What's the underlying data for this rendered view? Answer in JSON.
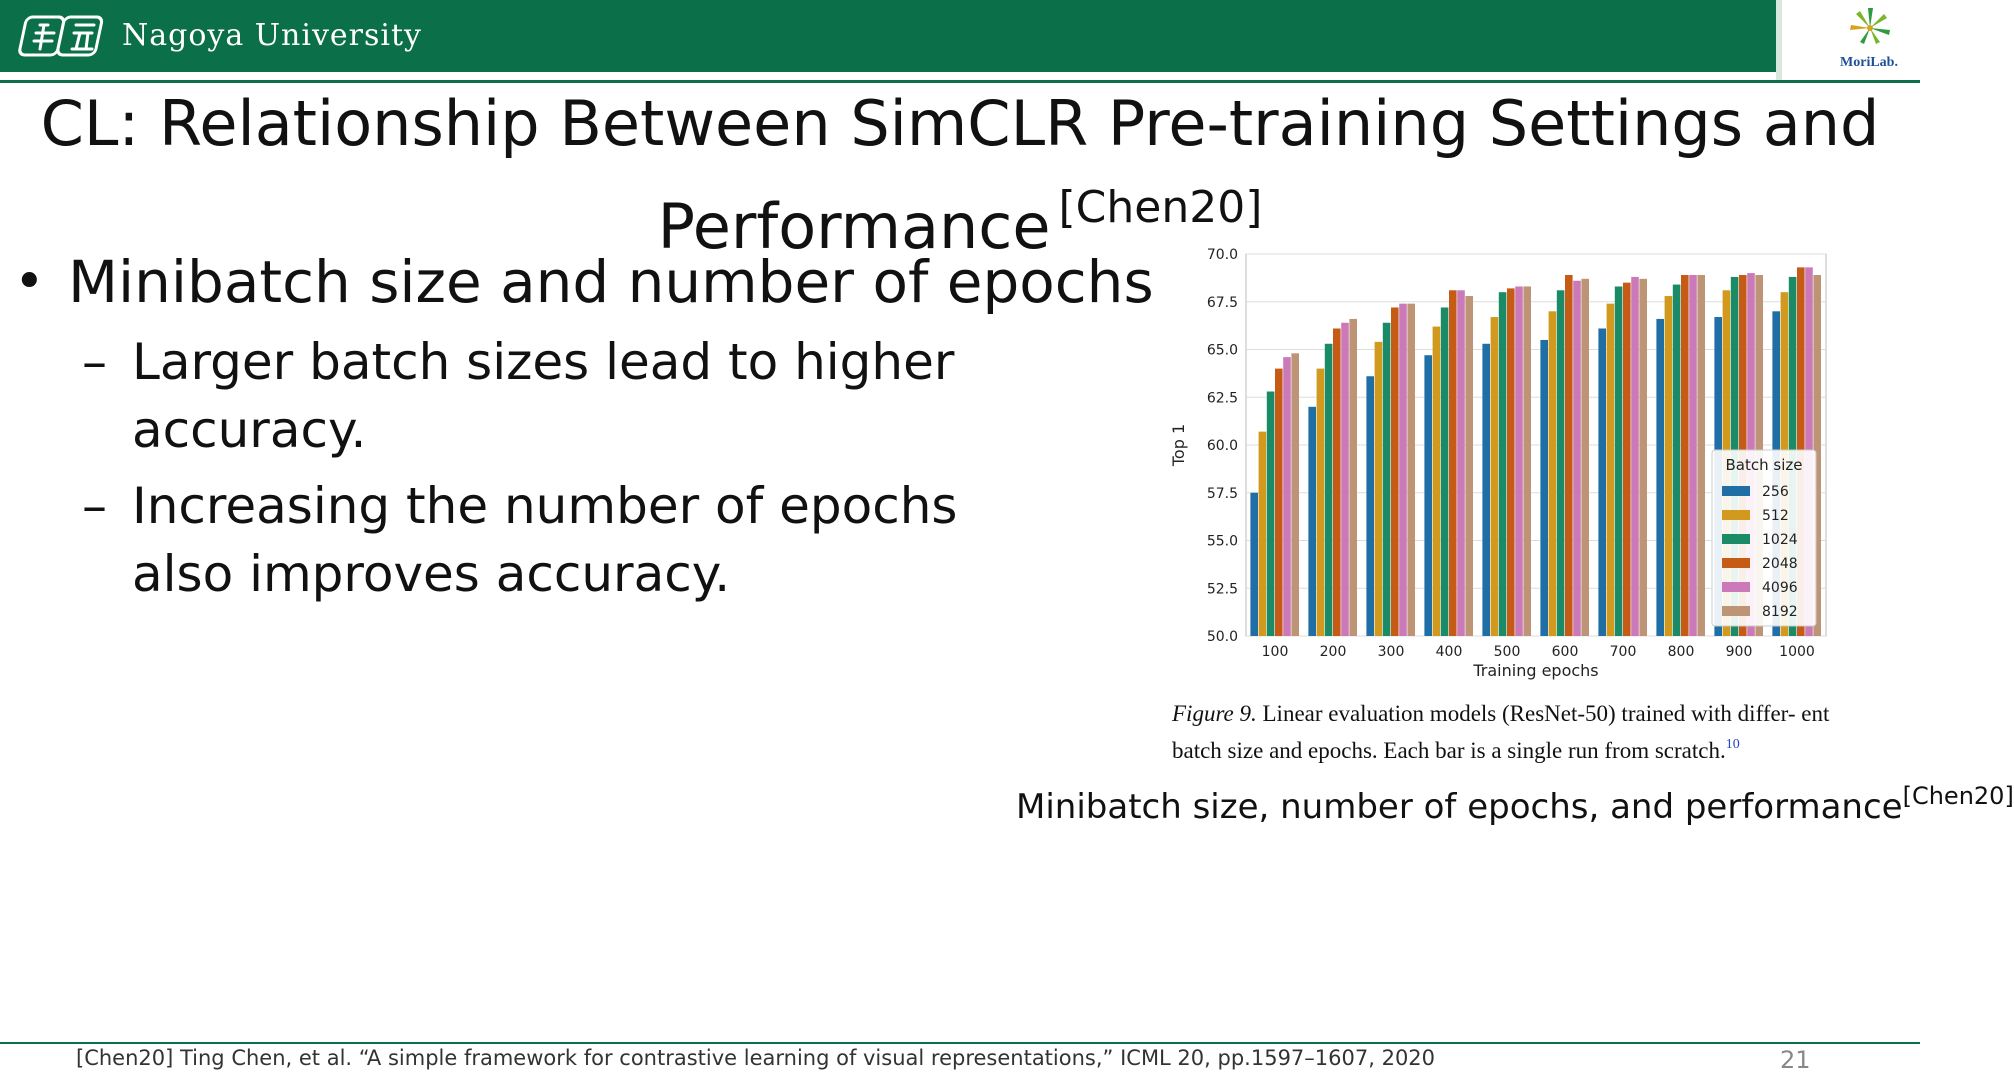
{
  "header": {
    "university": "Nagoya University",
    "lab_logo_text": "MoriLab.",
    "accent_color": "#0b7049"
  },
  "slide": {
    "title": "CL: Relationship Between SimCLR Pre-training Settings and Performance",
    "title_cite": "[Chen20]",
    "bullet_main": "Minibatch size and number of epochs",
    "sub_bullets": [
      {
        "dash": "–",
        "lines": [
          "Larger batch sizes lead to higher accuracy."
        ]
      },
      {
        "dash": "–",
        "lines": [
          "Increasing the number of epochs",
          "also improves accuracy."
        ]
      }
    ],
    "figure_caption_label": "Figure 9.",
    "figure_caption_text": "Linear evaluation models (ResNet-50) trained with differ- ent batch size and epochs. Each bar is a single run from scratch.",
    "figure_caption_footnote": "10",
    "image_caption": "Minibatch size, number of epochs, and performance",
    "image_caption_cite": "[Chen20]",
    "footer_reference": "[Chen20] Ting Chen, et al. “A simple framework for contrastive learning of visual representations,” ICML 20, pp.1597–1607, 2020",
    "page_number": "21"
  },
  "chart_data": {
    "type": "bar",
    "title": "",
    "xlabel": "Training epochs",
    "ylabel": "Top 1",
    "ylim": [
      50.0,
      70.0
    ],
    "yticks": [
      "50.0",
      "52.5",
      "55.0",
      "57.5",
      "60.0",
      "62.5",
      "65.0",
      "67.5",
      "70.0"
    ],
    "grid": true,
    "legend_title": "Batch size",
    "legend_position": "right",
    "categories": [
      "100",
      "200",
      "300",
      "400",
      "500",
      "600",
      "700",
      "800",
      "900",
      "1000"
    ],
    "series": [
      {
        "name": "256",
        "color": "#1f6fa6",
        "values": [
          57.5,
          62.0,
          63.6,
          64.7,
          65.3,
          65.5,
          66.1,
          66.6,
          66.7,
          67.0
        ]
      },
      {
        "name": "512",
        "color": "#d19a1e",
        "values": [
          60.7,
          64.0,
          65.4,
          66.2,
          66.7,
          67.0,
          67.4,
          67.8,
          68.1,
          68.0
        ]
      },
      {
        "name": "1024",
        "color": "#1b8a66",
        "values": [
          62.8,
          65.3,
          66.4,
          67.2,
          68.0,
          68.1,
          68.3,
          68.4,
          68.8,
          68.8
        ]
      },
      {
        "name": "2048",
        "color": "#c55b14",
        "values": [
          64.0,
          66.1,
          67.2,
          68.1,
          68.2,
          68.9,
          68.5,
          68.9,
          68.9,
          69.3
        ]
      },
      {
        "name": "4096",
        "color": "#cc79b9",
        "values": [
          64.6,
          66.4,
          67.4,
          68.1,
          68.3,
          68.6,
          68.8,
          68.9,
          69.0,
          69.3
        ]
      },
      {
        "name": "8192",
        "color": "#bd9475",
        "values": [
          64.8,
          66.6,
          67.4,
          67.8,
          68.3,
          68.7,
          68.7,
          68.9,
          68.9,
          68.9
        ]
      }
    ]
  }
}
